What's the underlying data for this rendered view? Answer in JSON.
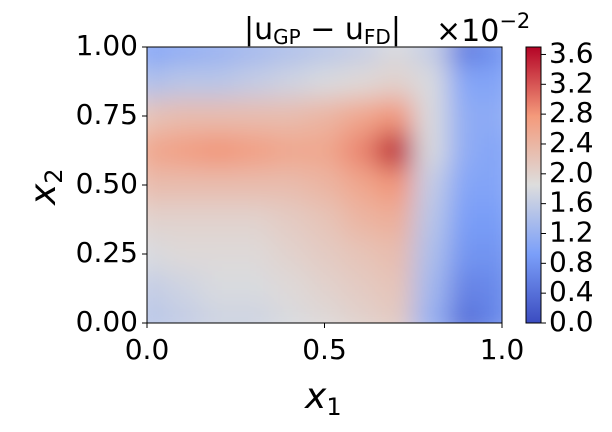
{
  "chart_data": {
    "type": "contour",
    "title_parts": [
      "|u",
      "GP",
      " − u",
      "FD",
      "|"
    ],
    "scale_parts": [
      "×10",
      "−2"
    ],
    "x_label_parts": [
      "x",
      "1"
    ],
    "y_label_parts": [
      "x",
      "2"
    ],
    "x": [
      0,
      0.1,
      0.2,
      0.3,
      0.4,
      0.5,
      0.6,
      0.7,
      0.8,
      0.9,
      1.0
    ],
    "y": [
      1.0,
      0.875,
      0.75,
      0.625,
      0.5,
      0.375,
      0.25,
      0.125,
      0
    ],
    "z": [
      [
        1.0,
        1.1,
        1.2,
        1.3,
        1.4,
        1.5,
        1.6,
        1.8,
        1.6,
        0.5,
        0.8
      ],
      [
        1.4,
        1.5,
        1.5,
        1.6,
        1.7,
        1.8,
        1.9,
        2.0,
        1.8,
        1.0,
        1.0
      ],
      [
        2.2,
        2.3,
        2.3,
        2.3,
        2.3,
        2.4,
        2.6,
        2.8,
        1.8,
        1.1,
        1.1
      ],
      [
        2.6,
        2.7,
        2.8,
        2.7,
        2.6,
        2.6,
        2.9,
        3.6,
        1.8,
        1.1,
        1.0
      ],
      [
        2.3,
        2.3,
        2.3,
        2.3,
        2.3,
        2.4,
        2.6,
        2.8,
        1.6,
        1.0,
        1.0
      ],
      [
        2.0,
        2.0,
        2.0,
        2.0,
        2.1,
        2.2,
        2.4,
        2.5,
        1.5,
        0.9,
        0.9
      ],
      [
        1.8,
        1.9,
        1.9,
        1.9,
        2.0,
        2.1,
        2.2,
        2.3,
        1.4,
        0.8,
        0.8
      ],
      [
        1.6,
        1.7,
        1.8,
        1.8,
        1.9,
        2.0,
        2.1,
        2.2,
        1.3,
        0.6,
        0.7
      ],
      [
        1.5,
        1.6,
        1.7,
        1.7,
        1.8,
        1.9,
        2.0,
        2.1,
        1.2,
        0.4,
        0.7
      ]
    ],
    "xlim": [
      0,
      1
    ],
    "ylim": [
      0,
      1
    ],
    "clim": [
      0,
      3.7
    ],
    "xticks": [
      {
        "value": 0,
        "label": "0.0"
      },
      {
        "value": 0.5,
        "label": "0.5"
      },
      {
        "value": 1,
        "label": "1.0"
      }
    ],
    "yticks": [
      {
        "value": 0,
        "label": "0.00"
      },
      {
        "value": 0.25,
        "label": "0.25"
      },
      {
        "value": 0.5,
        "label": "0.50"
      },
      {
        "value": 0.75,
        "label": "0.75"
      },
      {
        "value": 1,
        "label": "1.00"
      }
    ],
    "cticks": [
      {
        "value": 0,
        "label": "0.0"
      },
      {
        "value": 0.4,
        "label": "0.4"
      },
      {
        "value": 0.8,
        "label": "0.8"
      },
      {
        "value": 1.2,
        "label": "1.2"
      },
      {
        "value": 1.6,
        "label": "1.6"
      },
      {
        "value": 2,
        "label": "2.0"
      },
      {
        "value": 2.4,
        "label": "2.4"
      },
      {
        "value": 2.8,
        "label": "2.8"
      },
      {
        "value": 3.2,
        "label": "3.2"
      },
      {
        "value": 3.6,
        "label": "3.6"
      }
    ],
    "colormap": [
      "#3b4cc0",
      "#7b9ff9",
      "#dddddd",
      "#f49a7b",
      "#b40426"
    ]
  }
}
